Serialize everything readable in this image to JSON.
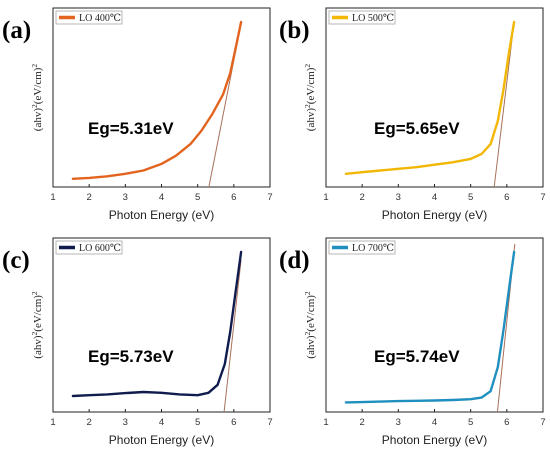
{
  "chart_data": [
    {
      "type": "line",
      "panel_label": "(a)",
      "legend": "LO 400℃",
      "color": "#e2641f",
      "annotation": "Eg=5.31eV",
      "xlabel": "Photon Energy (eV)",
      "ylabel_parts": [
        "(ahv)",
        "2",
        "(eV/cm)",
        "2"
      ],
      "xlim": [
        1,
        7
      ],
      "xticks": [
        "1",
        "2",
        "3",
        "4",
        "5",
        "6",
        "7"
      ],
      "ylim": [
        0,
        1
      ],
      "series": [
        {
          "x": [
            1.55,
            2.0,
            2.5,
            3.0,
            3.5,
            4.0,
            4.4,
            4.8,
            5.1,
            5.4,
            5.7,
            5.9,
            6.05,
            6.2
          ],
          "y": [
            0.05,
            0.055,
            0.065,
            0.08,
            0.1,
            0.14,
            0.19,
            0.26,
            0.34,
            0.44,
            0.56,
            0.69,
            0.84,
            1.0
          ]
        }
      ],
      "tangent": {
        "x": [
          5.31,
          6.12
        ],
        "y": [
          0,
          0.9
        ]
      }
    },
    {
      "type": "line",
      "panel_label": "(b)",
      "legend": "LO 500℃",
      "color": "#f2b705",
      "annotation": "Eg=5.65eV",
      "xlabel": "Photon Energy (eV)",
      "ylabel_parts": [
        "(ahv)",
        "2",
        "(eV/cm)",
        "2"
      ],
      "xlim": [
        1,
        7
      ],
      "xticks": [
        "1",
        "2",
        "3",
        "4",
        "5",
        "6",
        "7"
      ],
      "ylim": [
        0,
        1
      ],
      "series": [
        {
          "x": [
            1.55,
            2.0,
            2.5,
            3.0,
            3.5,
            4.0,
            4.5,
            5.0,
            5.3,
            5.55,
            5.75,
            5.9,
            6.05,
            6.2
          ],
          "y": [
            0.08,
            0.09,
            0.1,
            0.11,
            0.12,
            0.135,
            0.15,
            0.17,
            0.2,
            0.26,
            0.4,
            0.58,
            0.8,
            1.0
          ]
        }
      ],
      "tangent": {
        "x": [
          5.65,
          6.2
        ],
        "y": [
          0,
          1.0
        ]
      }
    },
    {
      "type": "line",
      "panel_label": "(c)",
      "legend": "LO 600℃",
      "color": "#111c4e",
      "annotation": "Eg=5.73eV",
      "xlabel": "Photon Energy (eV)",
      "ylabel_parts": [
        "(ahv)",
        "2",
        "(eV/cm)",
        "2"
      ],
      "xlim": [
        1,
        7
      ],
      "xticks": [
        "1",
        "2",
        "3",
        "4",
        "5",
        "6",
        "7"
      ],
      "ylim": [
        0,
        1
      ],
      "series": [
        {
          "x": [
            1.55,
            2.0,
            2.5,
            3.0,
            3.5,
            4.0,
            4.5,
            5.0,
            5.3,
            5.55,
            5.75,
            5.9,
            6.05,
            6.2
          ],
          "y": [
            0.1,
            0.105,
            0.11,
            0.118,
            0.125,
            0.12,
            0.11,
            0.105,
            0.12,
            0.17,
            0.3,
            0.5,
            0.75,
            1.0
          ]
        }
      ],
      "tangent": {
        "x": [
          5.73,
          6.2
        ],
        "y": [
          0,
          0.95
        ]
      }
    },
    {
      "type": "line",
      "panel_label": "(d)",
      "legend": "LO 700℃",
      "color": "#1f8fbf",
      "annotation": "Eg=5.74eV",
      "xlabel": "Photon Energy (eV)",
      "ylabel_parts": [
        "(ahv)",
        "2",
        "(eV/cm)",
        "2"
      ],
      "xlim": [
        1,
        7
      ],
      "xticks": [
        "1",
        "2",
        "3",
        "4",
        "5",
        "6",
        "7"
      ],
      "ylim": [
        0,
        1
      ],
      "series": [
        {
          "x": [
            1.55,
            2.0,
            2.5,
            3.0,
            3.5,
            4.0,
            4.5,
            5.0,
            5.3,
            5.55,
            5.75,
            5.9,
            6.05,
            6.2
          ],
          "y": [
            0.06,
            0.062,
            0.065,
            0.068,
            0.07,
            0.072,
            0.075,
            0.08,
            0.09,
            0.13,
            0.28,
            0.5,
            0.75,
            1.0
          ]
        }
      ],
      "tangent": {
        "x": [
          5.74,
          6.22
        ],
        "y": [
          0,
          1.05
        ]
      }
    }
  ],
  "tangent_color": "#a8705a"
}
